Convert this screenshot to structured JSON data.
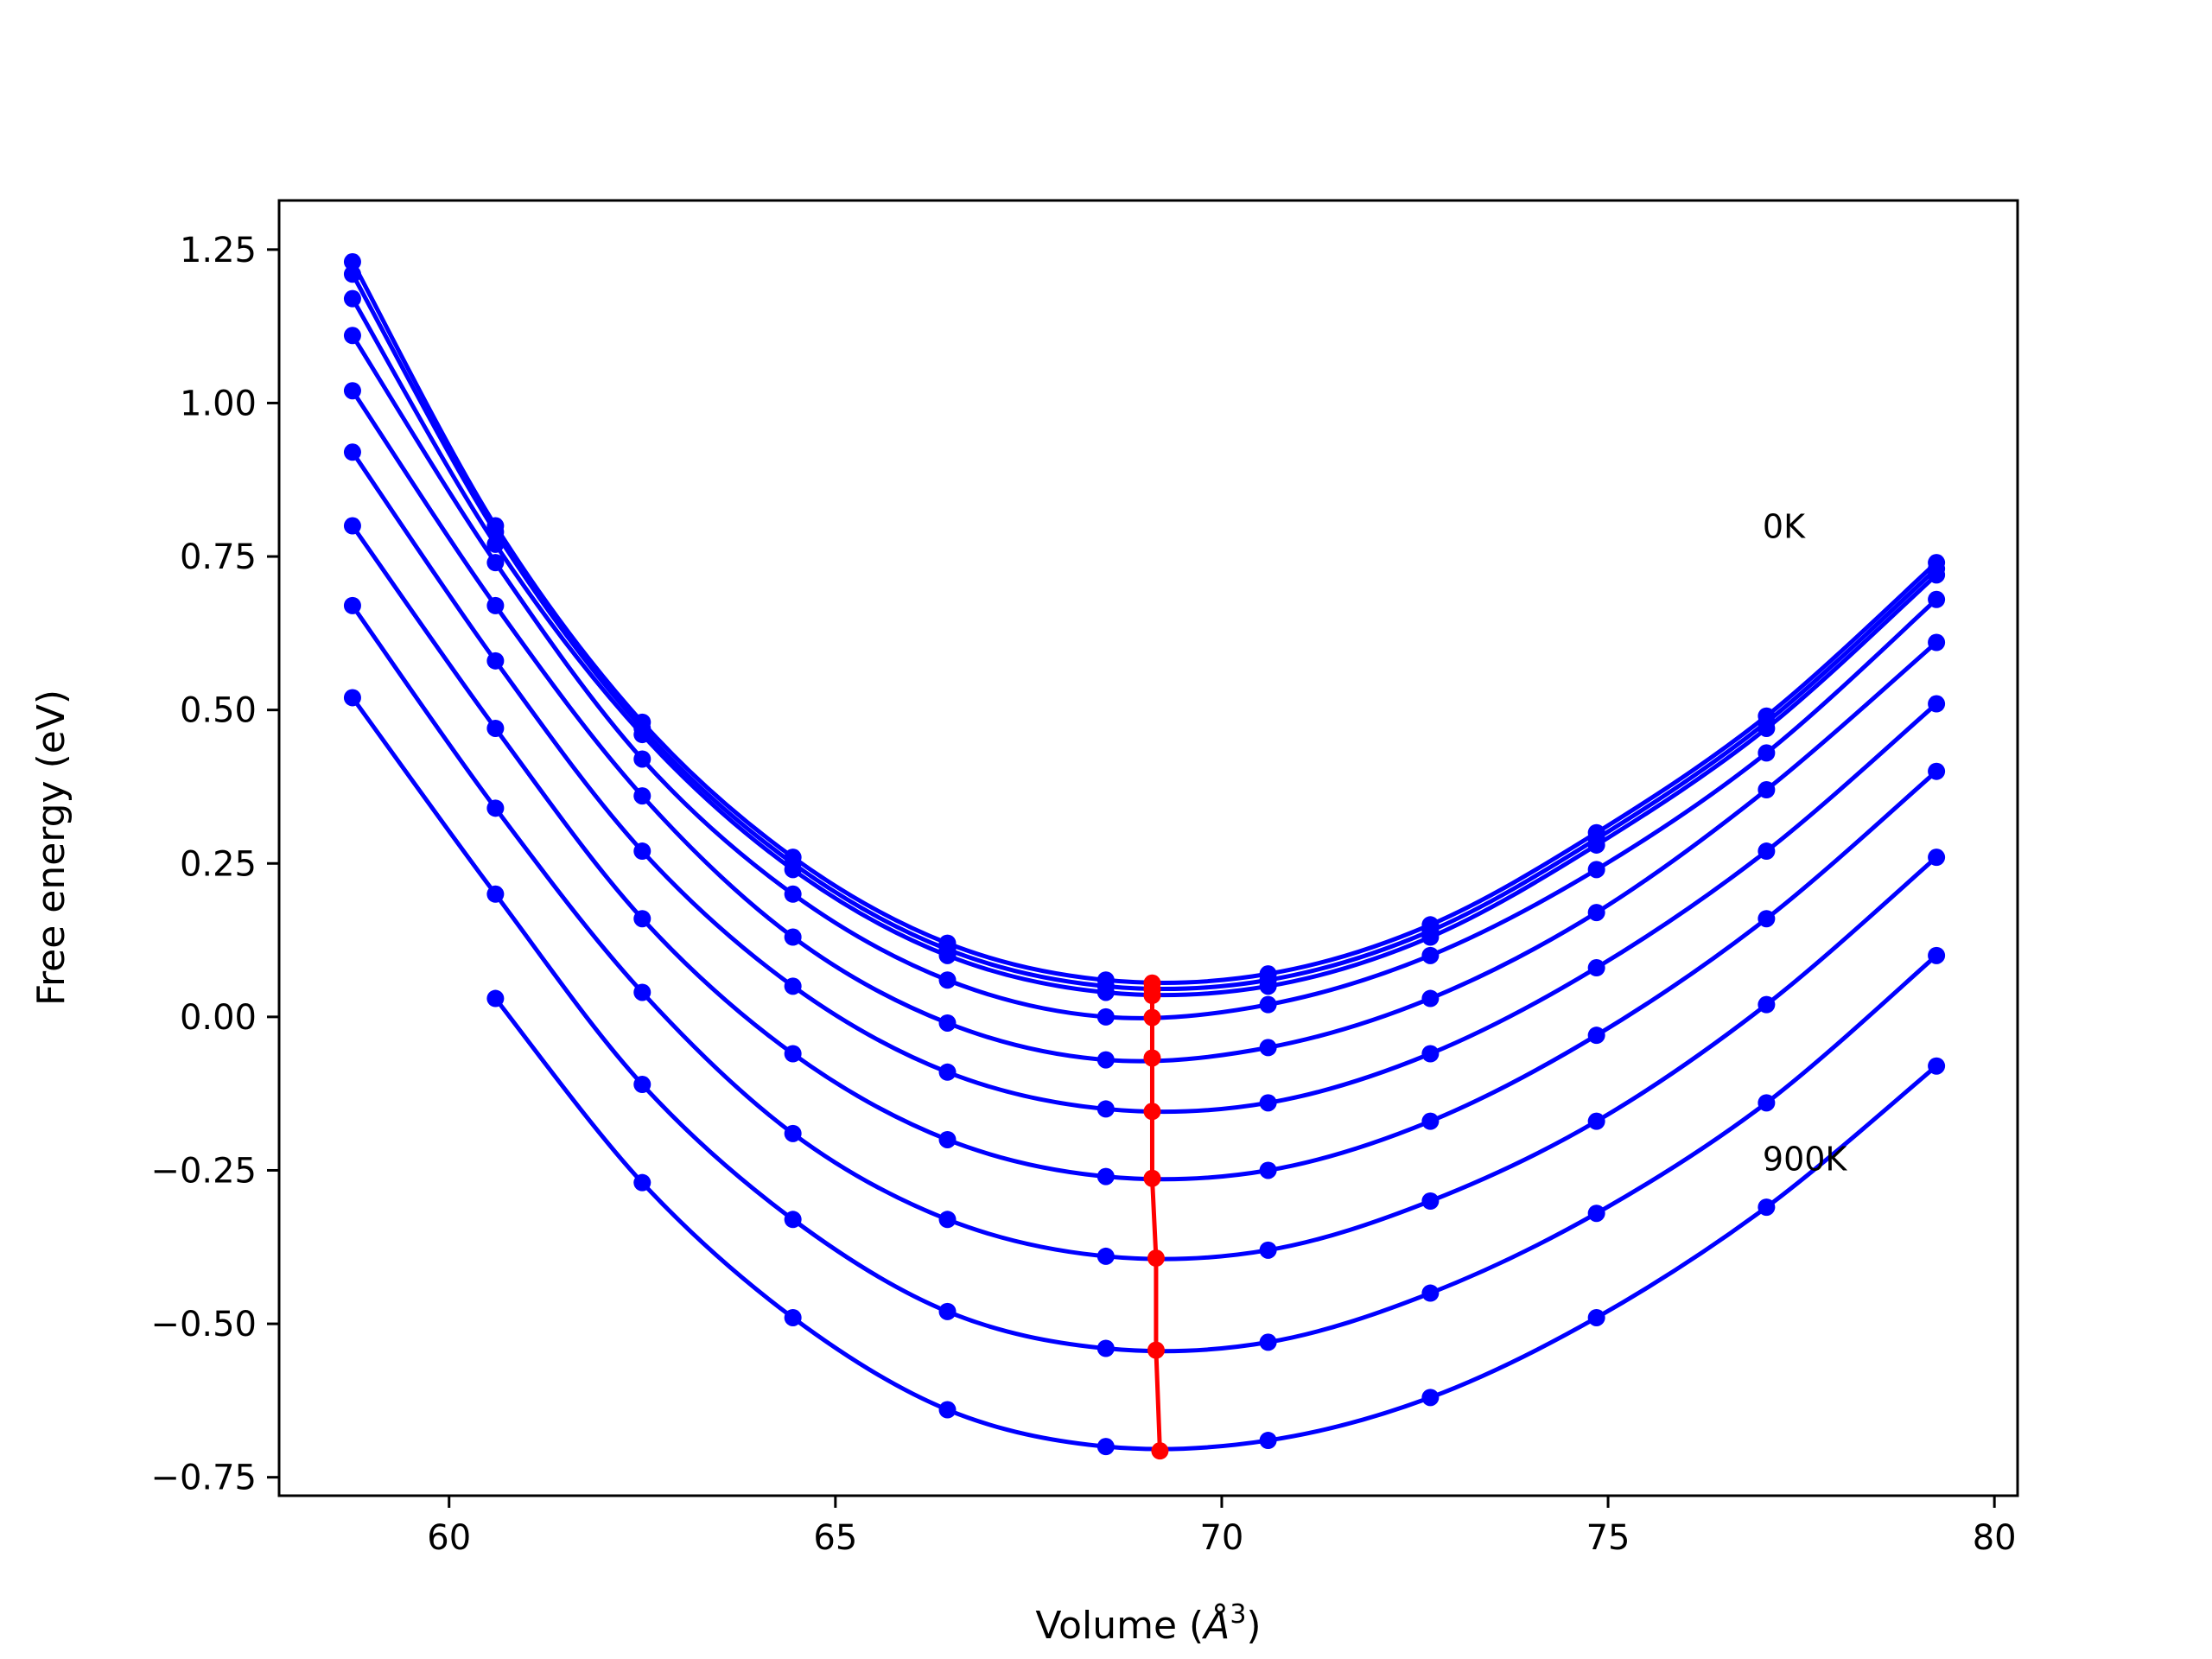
{
  "chart_data": {
    "type": "line",
    "title": "",
    "xlabel": "Volume (",
    "xlabel_symbol": "Å",
    "xlabel_sup": "3",
    "xlabel_close": ")",
    "ylabel": "Free energy (eV)",
    "xlim": [
      57.8,
      80.3
    ],
    "ylim": [
      -0.78,
      1.33
    ],
    "xticks": [
      60,
      65,
      70,
      75,
      80
    ],
    "xtick_labels": [
      "60",
      "65",
      "70",
      "75",
      "80"
    ],
    "yticks": [
      1.25,
      1.0,
      0.75,
      0.5,
      0.25,
      0.0,
      -0.25,
      -0.5,
      -0.75
    ],
    "ytick_labels": [
      "1.25",
      "1.00",
      "0.75",
      "0.50",
      "0.25",
      "0.00",
      "−0.25",
      "−0.50",
      "−0.75"
    ],
    "grid": false,
    "x": [
      58.75,
      60.6,
      62.5,
      64.45,
      66.45,
      68.5,
      70.6,
      72.7,
      74.85,
      77.05,
      79.25
    ],
    "series_color": "#0000ff",
    "series": [
      {
        "values": [
          1.23,
          0.8,
          0.48,
          0.26,
          0.12,
          0.06,
          0.07,
          0.15,
          0.3,
          0.49,
          0.74
        ]
      },
      {
        "values": [
          1.21,
          0.79,
          0.47,
          0.25,
          0.11,
          0.05,
          0.06,
          0.14,
          0.29,
          0.48,
          0.73
        ]
      },
      {
        "values": [
          1.17,
          0.77,
          0.46,
          0.24,
          0.1,
          0.04,
          0.05,
          0.13,
          0.28,
          0.47,
          0.72
        ]
      },
      {
        "values": [
          1.11,
          0.74,
          0.42,
          0.2,
          0.06,
          0.0,
          0.02,
          0.1,
          0.24,
          0.43,
          0.68
        ]
      },
      {
        "values": [
          1.02,
          0.67,
          0.36,
          0.13,
          -0.01,
          -0.07,
          -0.05,
          0.03,
          0.17,
          0.37,
          0.61
        ]
      },
      {
        "values": [
          0.92,
          0.58,
          0.27,
          0.05,
          -0.09,
          -0.15,
          -0.14,
          -0.06,
          0.08,
          0.27,
          0.51
        ]
      },
      {
        "values": [
          0.8,
          0.47,
          0.16,
          -0.06,
          -0.2,
          -0.26,
          -0.25,
          -0.17,
          -0.03,
          0.16,
          0.4
        ]
      },
      {
        "values": [
          0.67,
          0.34,
          0.04,
          -0.19,
          -0.33,
          -0.39,
          -0.38,
          -0.3,
          -0.17,
          0.02,
          0.26
        ]
      },
      {
        "values": [
          0.52,
          0.2,
          -0.11,
          -0.33,
          -0.48,
          -0.54,
          -0.53,
          -0.45,
          -0.32,
          -0.14,
          0.1
        ]
      },
      {
        "values": [
          null,
          0.03,
          -0.27,
          -0.49,
          -0.64,
          -0.7,
          -0.69,
          -0.62,
          -0.49,
          -0.31,
          -0.08
        ]
      }
    ],
    "minima_color": "#ff0000",
    "minima": {
      "x": [
        69.1,
        69.1,
        69.1,
        69.1,
        69.1,
        69.1,
        69.1,
        69.15,
        69.15,
        69.2
      ],
      "y": [
        0.055,
        0.045,
        0.035,
        -0.001,
        -0.067,
        -0.154,
        -0.263,
        -0.393,
        -0.543,
        -0.707
      ]
    },
    "annotations": [
      {
        "text": "0K",
        "x": 77.0,
        "y": 0.78
      },
      {
        "text": "900K",
        "x": 77.0,
        "y": -0.25
      }
    ]
  }
}
